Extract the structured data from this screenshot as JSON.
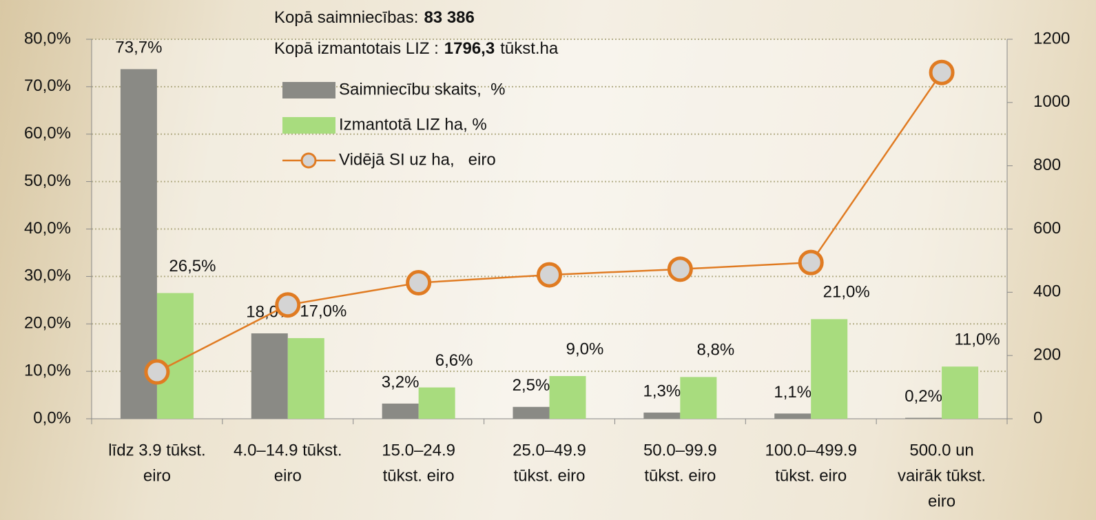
{
  "chart_data": {
    "type": "bar",
    "annotations": [
      [
        {
          "text": "Kopā saimniecības:"
        },
        {
          "text": "83 386",
          "bold": true
        }
      ],
      [
        {
          "text": "Kopā izmantotais LIZ :"
        },
        {
          "text": "1796,3",
          "bold": true
        },
        {
          "text": "tūkst.ha"
        }
      ]
    ],
    "categories": [
      [
        "līdz 3.9 tūkst.",
        "eiro"
      ],
      [
        "4.0–14.9 tūkst.",
        "eiro"
      ],
      [
        "15.0–24.9",
        "tūkst. eiro"
      ],
      [
        "25.0–49.9",
        "tūkst. eiro"
      ],
      [
        "50.0–99.9",
        "tūkst. eiro"
      ],
      [
        "100.0–499.9",
        "tūkst. eiro"
      ],
      [
        "500.0 un",
        "vairāk tūkst.",
        "eiro"
      ]
    ],
    "series": [
      {
        "name": "Saimniecību skaits,  %",
        "type": "bar",
        "color": "#8a8a85",
        "values": [
          73.7,
          18.0,
          3.2,
          2.5,
          1.3,
          1.1,
          0.2
        ],
        "value_labels": [
          "73,7%",
          "18,0%",
          "3,2%",
          "2,5%",
          "1,3%",
          "1,1%",
          "0,2%"
        ]
      },
      {
        "name": "Izmantotā LIZ ha, %",
        "type": "bar",
        "color": "#a8dc7e",
        "values": [
          26.5,
          17.0,
          6.6,
          9.0,
          8.8,
          21.0,
          11.0
        ],
        "value_labels": [
          "26,5%",
          "17,0%",
          "6,6%",
          "9,0%",
          "8,8%",
          "21,0%",
          "11,0%"
        ]
      },
      {
        "name": "Vidējā SI uz ha,   eiro",
        "type": "line",
        "axis": "y2",
        "color": "#e07b22",
        "marker_fill": "#d4d4d4",
        "values": [
          148,
          360,
          430,
          455,
          473,
          494,
          1095
        ]
      }
    ],
    "ylim": [
      0,
      80
    ],
    "yticks": [
      {
        "value": 0,
        "label": "0,0%"
      },
      {
        "value": 10,
        "label": "10,0%"
      },
      {
        "value": 20,
        "label": "20,0%"
      },
      {
        "value": 30,
        "label": "30,0%"
      },
      {
        "value": 40,
        "label": "40,0%"
      },
      {
        "value": 50,
        "label": "50,0%"
      },
      {
        "value": 60,
        "label": "60,0%"
      },
      {
        "value": 70,
        "label": "70,0%"
      },
      {
        "value": 80,
        "label": "80,0%"
      }
    ],
    "y2lim": [
      0,
      1200
    ],
    "y2ticks": [
      0,
      200,
      400,
      600,
      800,
      1000,
      1200
    ],
    "grid": true
  }
}
